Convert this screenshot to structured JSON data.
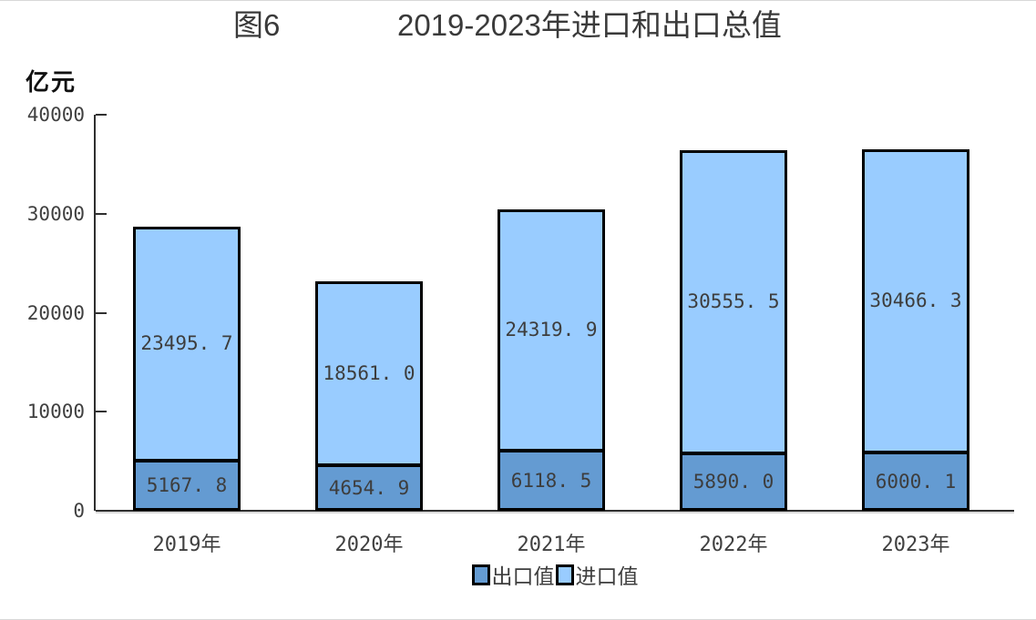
{
  "header": {
    "figure_label": "图6",
    "title": "2019-2023年进口和出口总值"
  },
  "chart_data": {
    "type": "bar",
    "stacked": true,
    "title": "图6 2019-2023年进口和出口总值",
    "ylabel": "亿元",
    "categories": [
      "2019年",
      "2020年",
      "2021年",
      "2022年",
      "2023年"
    ],
    "series": [
      {
        "name": "出口值",
        "color": "#649BD2",
        "values": [
          5167.8,
          4654.9,
          6118.5,
          5890.0,
          6000.1
        ]
      },
      {
        "name": "进口值",
        "color": "#99CCFF",
        "values": [
          23495.7,
          18561.0,
          24319.9,
          30555.5,
          30466.3
        ]
      }
    ],
    "totals": [
      28663.5,
      23215.9,
      30438.4,
      36445.5,
      36466.4
    ],
    "ylim": [
      0,
      40000
    ],
    "yticks": [
      0,
      10000,
      20000,
      30000,
      40000
    ],
    "bar_border_color": "#000000",
    "axis_color": "#2f2f2f",
    "label_color": "#404040",
    "grid": false,
    "legend_position": "bottom"
  }
}
